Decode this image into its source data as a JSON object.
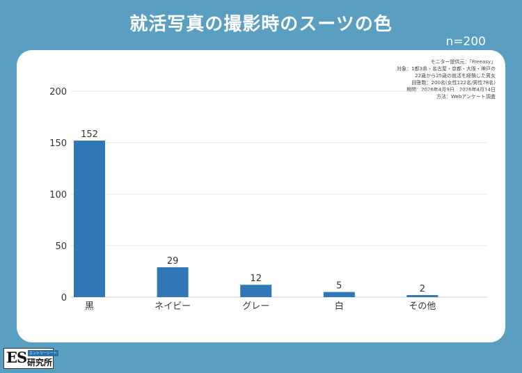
{
  "header": {
    "title": "就活写真の撮影時のスーツの色",
    "sample_size": "n=200"
  },
  "notes": [
    "モニター提供元：「Freeasy」",
    "対象：1都3県・名古屋・京都・大阪・神戸の",
    "22歳から25歳の就活を経験した男女",
    "回答数：200名(女性122名/男性78名)",
    "期間：2026年4月9日　2026年4月14日",
    "方法：Webアンケート調査"
  ],
  "logo": {
    "mark": "ES",
    "tagline": "エントリーシート",
    "name": "研究所"
  },
  "colors": {
    "background": "#5a9fc2",
    "bar": "#2f78b5",
    "card": "#ffffff"
  },
  "chart_data": {
    "type": "bar",
    "categories": [
      "黒",
      "ネイビー",
      "グレー",
      "白",
      "その他"
    ],
    "values": [
      152,
      29,
      12,
      5,
      2
    ],
    "ylim": [
      0,
      200
    ],
    "yticks": [
      0,
      50,
      100,
      150,
      200
    ],
    "data_labels": true,
    "grid": true
  }
}
